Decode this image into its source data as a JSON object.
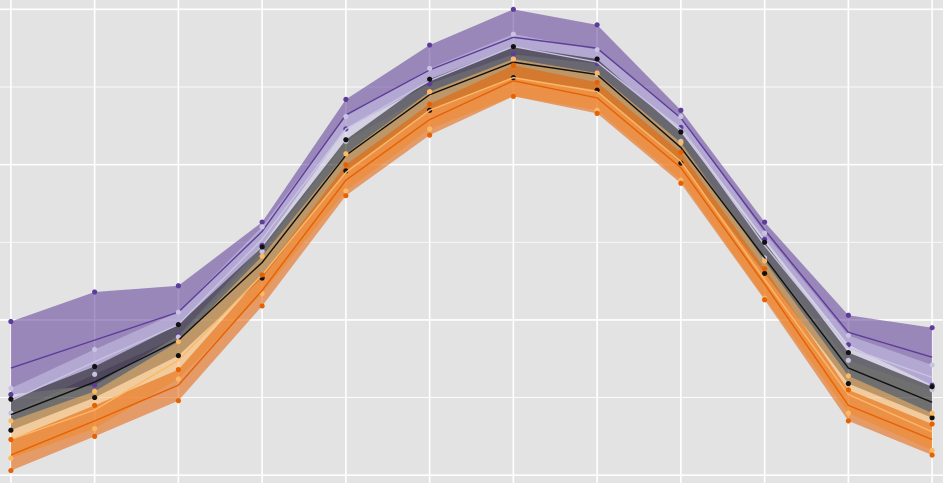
{
  "chart_data": {
    "type": "line",
    "x": [
      1,
      2,
      3,
      4,
      5,
      6,
      7,
      8,
      9,
      10,
      11,
      12
    ],
    "xlim": [
      0.87,
      12.13
    ],
    "xticks": [
      1,
      2,
      3,
      4,
      5,
      6,
      7,
      8,
      9,
      10,
      11,
      12
    ],
    "ylim": [
      -0.5,
      30.6
    ],
    "yticks": [
      0,
      5,
      10,
      15,
      20,
      25,
      30
    ],
    "grid": true,
    "background": "#e3e3e3",
    "series": [
      {
        "color": "#5e3c99",
        "values": [
          6.9,
          8.7,
          10.5,
          15.7,
          23.2,
          26.1,
          28.2,
          27.5,
          23.0,
          15.8,
          9.2,
          7.6
        ],
        "upper": [
          9.9,
          11.8,
          12.2,
          16.3,
          24.2,
          27.7,
          30.0,
          29.0,
          23.5,
          16.3,
          10.3,
          9.5
        ],
        "lower": [
          5.2,
          5.8,
          9.0,
          14.8,
          22.3,
          25.2,
          27.1,
          26.5,
          22.4,
          15.2,
          8.4,
          5.8
        ]
      },
      {
        "color": "#c9c3e3",
        "values": [
          4.8,
          7.3,
          9.7,
          15.2,
          22.3,
          25.4,
          27.6,
          26.6,
          22.3,
          14.8,
          8.2,
          6.3
        ],
        "upper": [
          5.6,
          8.1,
          10.5,
          16.0,
          23.1,
          26.2,
          28.4,
          27.4,
          23.1,
          15.6,
          9.0,
          7.1
        ],
        "lower": [
          4.0,
          6.5,
          8.9,
          14.4,
          21.5,
          24.6,
          26.8,
          25.8,
          21.5,
          14.0,
          7.4,
          5.5
        ]
      },
      {
        "color": "#111111",
        "values": [
          3.9,
          6.0,
          8.7,
          13.7,
          20.6,
          24.5,
          26.6,
          25.8,
          21.1,
          14.0,
          6.9,
          4.7
        ],
        "upper": [
          4.9,
          7.0,
          9.7,
          14.7,
          21.6,
          25.5,
          27.6,
          26.8,
          22.1,
          15.0,
          7.9,
          5.7
        ],
        "lower": [
          2.9,
          5.0,
          7.7,
          12.7,
          19.6,
          23.5,
          25.6,
          24.8,
          20.1,
          13.0,
          5.9,
          3.7
        ]
      },
      {
        "color": "#fdb863",
        "values": [
          2.3,
          4.2,
          7.4,
          12.9,
          19.5,
          23.5,
          25.6,
          24.7,
          20.2,
          12.6,
          5.2,
          2.8
        ],
        "upper": [
          3.5,
          5.4,
          8.6,
          14.1,
          20.7,
          24.7,
          26.8,
          25.9,
          21.4,
          13.8,
          6.4,
          4.0
        ],
        "lower": [
          1.1,
          3.0,
          6.2,
          11.7,
          18.3,
          22.3,
          24.4,
          23.5,
          19.0,
          11.4,
          4.0,
          1.6
        ]
      },
      {
        "color": "#e66101",
        "values": [
          1.3,
          3.5,
          5.8,
          11.9,
          19.0,
          22.9,
          25.4,
          24.3,
          19.8,
          12.3,
          4.5,
          2.3
        ],
        "upper": [
          2.3,
          4.5,
          6.8,
          12.9,
          20.0,
          23.9,
          26.4,
          25.3,
          20.8,
          13.3,
          5.5,
          3.3
        ],
        "lower": [
          0.3,
          2.5,
          4.8,
          10.9,
          18.0,
          21.9,
          24.4,
          23.3,
          18.8,
          11.3,
          3.5,
          1.3
        ]
      }
    ]
  }
}
